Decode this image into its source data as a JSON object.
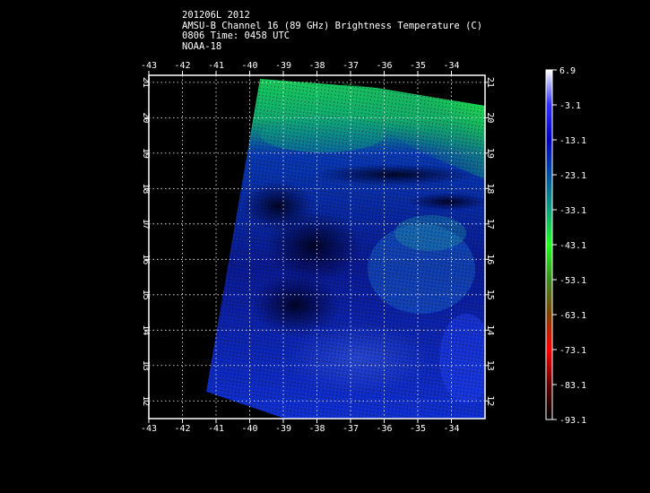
{
  "title": {
    "line1": "201206L 2012",
    "line2": "AMSU-B Channel 16 (89 GHz) Brightness Temperature (C)",
    "line3": "0806 Time: 0458 UTC",
    "line4": "NOAA-18"
  },
  "map": {
    "lon_range": [
      -43,
      -33
    ],
    "lat_range": [
      11.5,
      21.2
    ],
    "lon_ticks": [
      "-43",
      "-42",
      "-41",
      "-40",
      "-39",
      "-38",
      "-37",
      "-36",
      "-35",
      "-34"
    ],
    "lat_ticks": [
      "12",
      "13",
      "14",
      "15",
      "16",
      "17",
      "18",
      "19",
      "20",
      "21"
    ],
    "grid": true
  },
  "colorbar": {
    "labels": [
      "6.9",
      "-3.1",
      "-13.1",
      "-23.1",
      "-33.1",
      "-43.1",
      "-53.1",
      "-63.1",
      "-73.1",
      "-83.1",
      "-93.1"
    ],
    "colors_top_to_bottom": [
      "#ffffff",
      "#3030ff",
      "#0000c0",
      "#0050a0",
      "#10a080",
      "#20ff20",
      "#3c8a20",
      "#804000",
      "#ff0000",
      "#600000",
      "#000000"
    ]
  }
}
